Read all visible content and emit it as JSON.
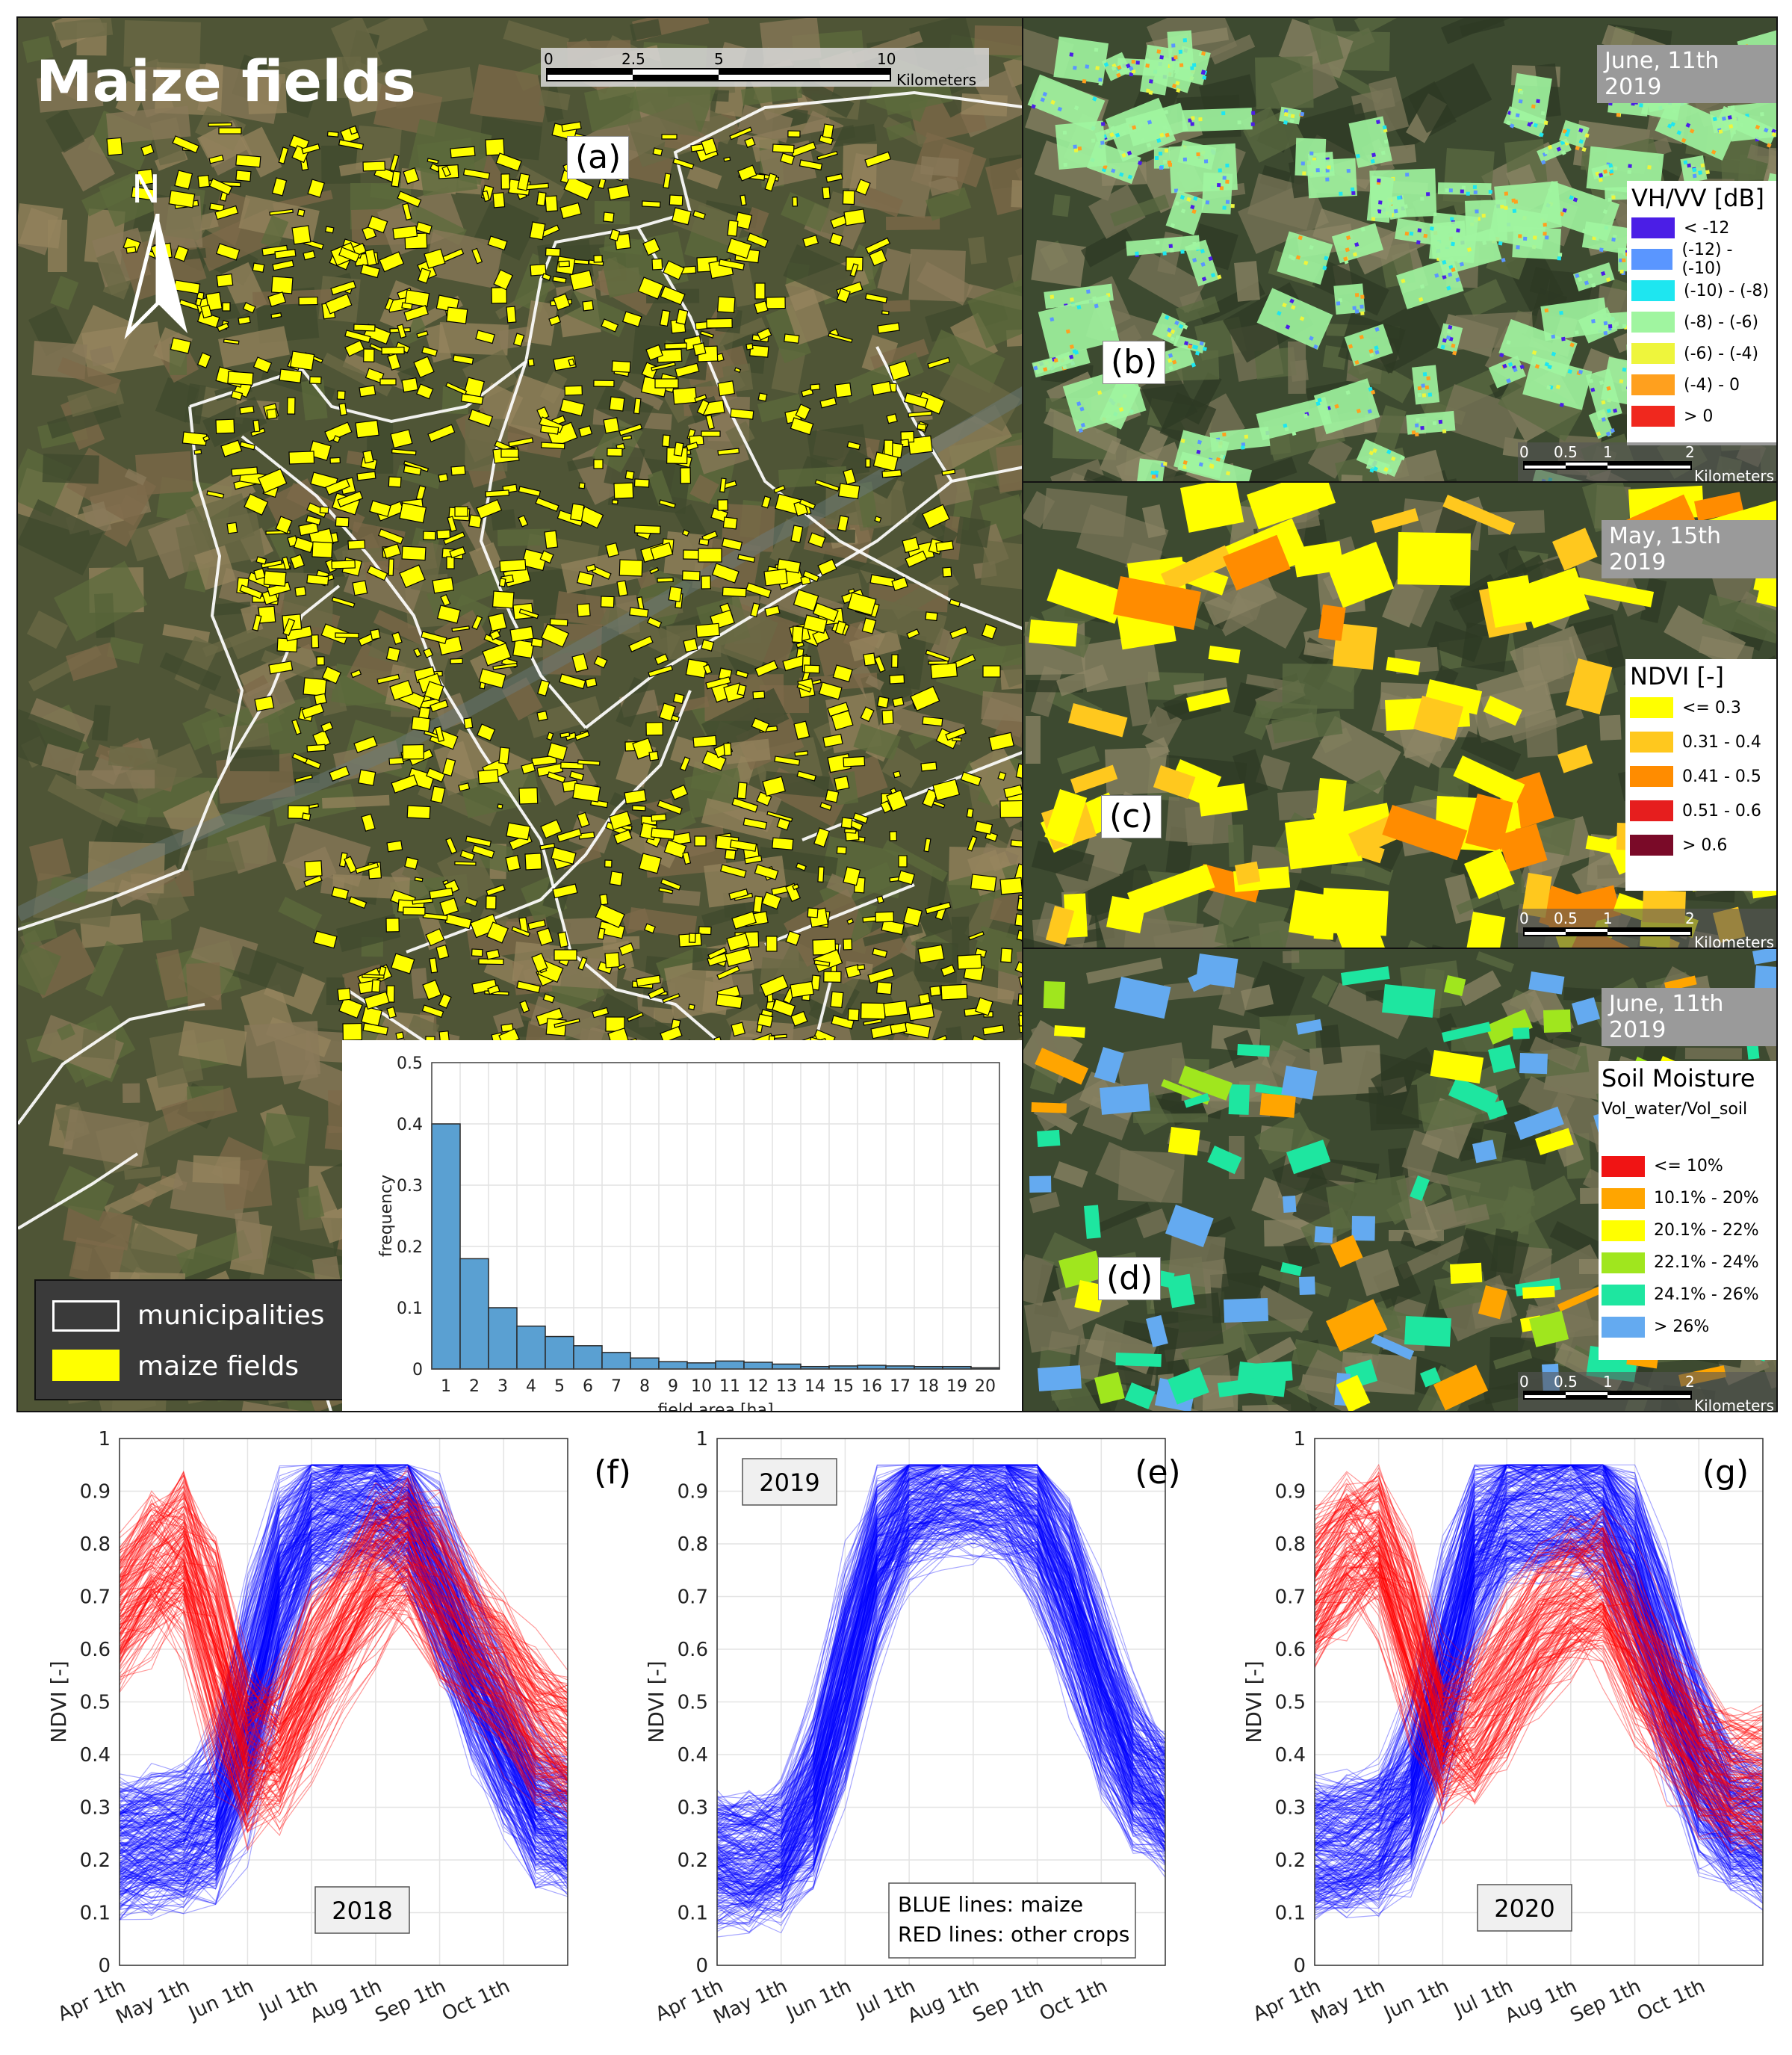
{
  "panel_a": {
    "title": "Maize fields",
    "label": "(a)",
    "north": "N",
    "scalebar": {
      "ticks": [
        "0",
        "2.5",
        "5",
        "10"
      ],
      "unit": "Kilometers"
    },
    "legend": [
      {
        "label": "municipalities",
        "color": "#000000"
      },
      {
        "label": "maize fields",
        "color": "#ffff00"
      }
    ]
  },
  "panel_b": {
    "label": "(b)",
    "date": "June, 11th 2019",
    "legend_title": "VH/VV [dB]",
    "legend": [
      {
        "label": "< -12",
        "color": "#4b1ee6"
      },
      {
        "label": "(-12) - (-10)",
        "color": "#5a96ff"
      },
      {
        "label": "(-10) - (-8)",
        "color": "#1ee6f0"
      },
      {
        "label": "(-8) - (-6)",
        "color": "#a0f5a0"
      },
      {
        "label": "(-6) - (-4)",
        "color": "#eef53c"
      },
      {
        "label": "(-4) - 0",
        "color": "#ffa01e"
      },
      {
        "label": "> 0",
        "color": "#f0281e"
      }
    ],
    "scalebar": {
      "ticks": [
        "0",
        "0.5",
        "1",
        "2"
      ],
      "unit": "Kilometers"
    }
  },
  "panel_c": {
    "label": "(c)",
    "date": "May, 15th 2019",
    "legend_title": "NDVI [-]",
    "legend": [
      {
        "label": "<= 0.3",
        "color": "#ffff00"
      },
      {
        "label": "0.31 - 0.4",
        "color": "#ffc81e"
      },
      {
        "label": "0.41 - 0.5",
        "color": "#ff8c00"
      },
      {
        "label": "0.51 - 0.6",
        "color": "#e61e1e"
      },
      {
        "label": "> 0.6",
        "color": "#7a0a28"
      }
    ],
    "scalebar": {
      "ticks": [
        "0",
        "0.5",
        "1",
        "2"
      ],
      "unit": "Kilometers"
    }
  },
  "panel_d": {
    "label": "(d)",
    "date": "June, 11th 2019",
    "legend_title": "Soil Moisture",
    "legend_subtitle": "Vol_water/Vol_soil",
    "legend": [
      {
        "label": "<= 10%",
        "color": "#f01414"
      },
      {
        "label": "10.1% - 20%",
        "color": "#ffa500"
      },
      {
        "label": "20.1% - 22%",
        "color": "#ffff00"
      },
      {
        "label": "22.1% - 24%",
        "color": "#a0e61e"
      },
      {
        "label": "24.1% - 26%",
        "color": "#1ee6a0"
      },
      {
        "label": "> 26%",
        "color": "#64aaf0"
      }
    ],
    "scalebar": {
      "ticks": [
        "0",
        "0.5",
        "1",
        "2"
      ],
      "unit": "Kilometers"
    }
  },
  "chart_data": [
    {
      "type": "bar",
      "xlabel": "field area [ha]",
      "ylabel": "frequency",
      "categories": [
        "1",
        "2",
        "3",
        "4",
        "5",
        "6",
        "7",
        "8",
        "9",
        "10",
        "11",
        "12",
        "13",
        "14",
        "15",
        "16",
        "17",
        "18",
        "19",
        "20"
      ],
      "values": [
        0.4,
        0.18,
        0.1,
        0.07,
        0.053,
        0.038,
        0.027,
        0.018,
        0.012,
        0.01,
        0.013,
        0.011,
        0.008,
        0.004,
        0.005,
        0.006,
        0.005,
        0.004,
        0.004,
        0.002
      ],
      "ylim": [
        0,
        0.5
      ],
      "yticks": [
        "0",
        "0.1",
        "0.2",
        "0.3",
        "0.4",
        "0.5"
      ],
      "color": "#5aa0d2"
    },
    {
      "type": "line",
      "panel": "(f)",
      "year_label": "2018",
      "ylabel": "NDVI [-]",
      "ylim": [
        0,
        1
      ],
      "yticks": [
        "0",
        "0.1",
        "0.2",
        "0.3",
        "0.4",
        "0.5",
        "0.6",
        "0.7",
        "0.8",
        "0.9",
        "1"
      ],
      "xticks": [
        "Apr 1th",
        "May 1th",
        "Jun 1th",
        "Jul 1th",
        "Aug 1th",
        "Sep 1th",
        "Oct 1th"
      ],
      "x": [
        "Apr 1",
        "Apr 15",
        "May 1",
        "May 15",
        "Jun 1",
        "Jun 15",
        "Jul 1",
        "Jul 15",
        "Aug 1",
        "Aug 15",
        "Sep 1",
        "Sep 15",
        "Oct 1",
        "Oct 15",
        "Oct 31"
      ],
      "series": [
        {
          "legend_text": "BLUE lines: maize",
          "color": "#0000ff",
          "values": [
            0.22,
            0.23,
            0.24,
            0.25,
            0.45,
            0.75,
            0.85,
            0.87,
            0.88,
            0.88,
            0.72,
            0.55,
            0.42,
            0.28,
            0.26
          ]
        },
        {
          "legend_text": "RED lines: other crops",
          "color": "#ff0000",
          "values": [
            0.65,
            0.75,
            0.82,
            0.6,
            0.35,
            0.4,
            0.55,
            0.65,
            0.75,
            0.82,
            0.7,
            0.6,
            0.55,
            0.45,
            0.4
          ]
        }
      ]
    },
    {
      "type": "line",
      "panel": "(e)",
      "year_label": "2019",
      "ylabel": "NDVI [-]",
      "ylim": [
        0,
        1
      ],
      "yticks": [
        "0",
        "0.1",
        "0.2",
        "0.3",
        "0.4",
        "0.5",
        "0.6",
        "0.7",
        "0.8",
        "0.9",
        "1"
      ],
      "xticks": [
        "Apr 1th",
        "May 1th",
        "Jun 1th",
        "Jul 1th",
        "Aug 1th",
        "Sep 1th",
        "Oct 1th"
      ],
      "x": [
        "Apr 1",
        "Apr 15",
        "May 1",
        "May 15",
        "Jun 1",
        "Jun 15",
        "Jul 1",
        "Jul 15",
        "Aug 1",
        "Aug 15",
        "Sep 1",
        "Sep 15",
        "Oct 1",
        "Oct 15",
        "Oct 31"
      ],
      "annotation": [
        "BLUE lines: maize",
        "RED lines: other crops"
      ],
      "series": [
        {
          "legend_text": "BLUE lines: maize",
          "color": "#0000ff",
          "values": [
            0.2,
            0.19,
            0.2,
            0.3,
            0.55,
            0.8,
            0.88,
            0.9,
            0.91,
            0.9,
            0.85,
            0.7,
            0.5,
            0.35,
            0.3
          ]
        }
      ]
    },
    {
      "type": "line",
      "panel": "(g)",
      "year_label": "2020",
      "ylabel": "NDVI [-]",
      "ylim": [
        0,
        1
      ],
      "yticks": [
        "0",
        "0.1",
        "0.2",
        "0.3",
        "0.4",
        "0.5",
        "0.6",
        "0.7",
        "0.8",
        "0.9",
        "1"
      ],
      "xticks": [
        "Apr 1th",
        "May 1th",
        "Jun 1th",
        "Jul 1th",
        "Aug 1th",
        "Sep 1th",
        "Oct 1th"
      ],
      "x": [
        "Apr 1",
        "Apr 15",
        "May 1",
        "May 15",
        "Jun 1",
        "Jun 15",
        "Jul 1",
        "Jul 15",
        "Aug 1",
        "Aug 15",
        "Sep 1",
        "Sep 15",
        "Oct 1",
        "Oct 15",
        "Oct 31"
      ],
      "series": [
        {
          "legend_text": "BLUE lines: maize",
          "color": "#0000ff",
          "values": [
            0.22,
            0.22,
            0.24,
            0.3,
            0.55,
            0.82,
            0.86,
            0.87,
            0.88,
            0.88,
            0.75,
            0.55,
            0.35,
            0.27,
            0.25
          ]
        },
        {
          "legend_text": "RED lines: other crops",
          "color": "#ff0000",
          "values": [
            0.7,
            0.8,
            0.85,
            0.65,
            0.4,
            0.45,
            0.55,
            0.65,
            0.7,
            0.75,
            0.6,
            0.5,
            0.4,
            0.35,
            0.35
          ]
        }
      ]
    }
  ]
}
